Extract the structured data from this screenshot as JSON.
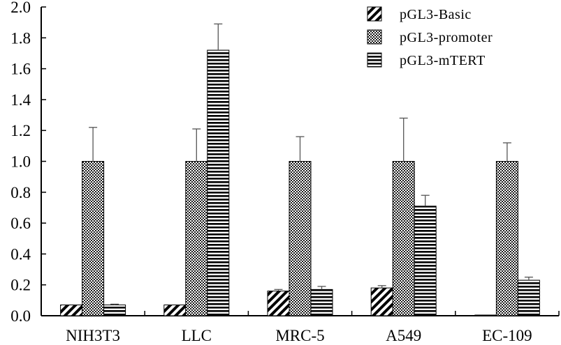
{
  "chart_data": {
    "type": "bar",
    "categories": [
      "NIH3T3",
      "LLC",
      "MRC-5",
      "A549",
      "EC-109"
    ],
    "series": [
      {
        "name": "pGL3-Basic",
        "pattern": "diagonal",
        "values": [
          0.07,
          0.07,
          0.16,
          0.18,
          0.0
        ],
        "errors": [
          0.0,
          0.0,
          0.01,
          0.015,
          0.0
        ]
      },
      {
        "name": "pGL3-promoter",
        "pattern": "checker",
        "values": [
          1.0,
          1.0,
          1.0,
          1.0,
          1.0
        ],
        "errors": [
          0.22,
          0.21,
          0.16,
          0.28,
          0.12
        ]
      },
      {
        "name": "pGL3-mTERT",
        "pattern": "horizontal",
        "values": [
          0.07,
          1.72,
          0.17,
          0.71,
          0.23
        ],
        "errors": [
          0.005,
          0.17,
          0.02,
          0.07,
          0.02
        ]
      }
    ],
    "ylim": [
      0,
      2.0
    ],
    "yticks": [
      "0.0",
      "0.2",
      "0.4",
      "0.6",
      "0.8",
      "1.0",
      "1.2",
      "1.4",
      "1.6",
      "1.8",
      "2.0"
    ],
    "legend_position": "top-right",
    "grid": false,
    "colors": {
      "ink": "#000000",
      "bar_fill": "#ffffff"
    }
  }
}
